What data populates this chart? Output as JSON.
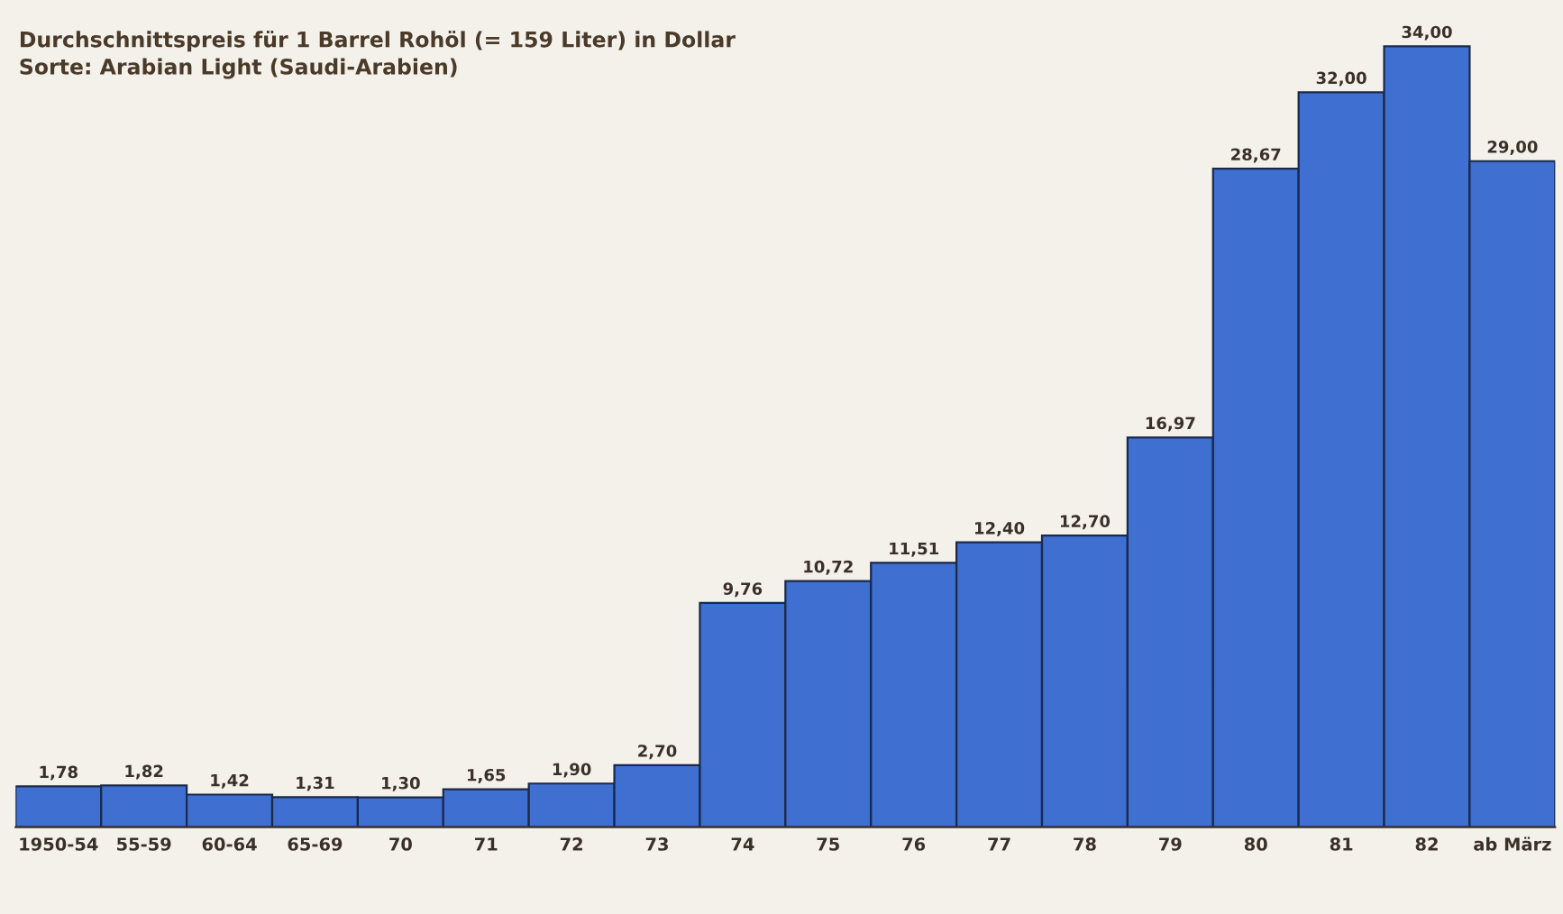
{
  "chart_data": {
    "type": "bar",
    "title": "Durchschnittspreis für 1 Barrel Rohöl (= 159 Liter) in Dollar",
    "subtitle": "Sorte: Arabian Light (Saudi-Arabien)",
    "categories": [
      "1950-54",
      "55-59",
      "60-64",
      "65-69",
      "70",
      "71",
      "72",
      "73",
      "74",
      "75",
      "76",
      "77",
      "78",
      "79",
      "80",
      "81",
      "82",
      "ab März"
    ],
    "values": [
      1.78,
      1.82,
      1.42,
      1.31,
      1.3,
      1.65,
      1.9,
      2.7,
      9.76,
      10.72,
      11.51,
      12.4,
      12.7,
      16.97,
      28.67,
      32.0,
      34.0,
      29.0
    ],
    "value_labels": [
      "1,78",
      "1,82",
      "1,42",
      "1,31",
      "1,30",
      "1,65",
      "1,90",
      "2,70",
      "9,76",
      "10,72",
      "11,51",
      "12,40",
      "12,70",
      "16,97",
      "28,67",
      "32,00",
      "34,00",
      "29,00"
    ],
    "color": "#3f6fd0",
    "grid": false,
    "legend": false
  }
}
